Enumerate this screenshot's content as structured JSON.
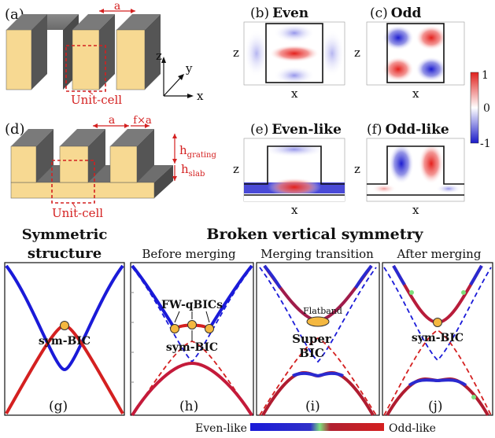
{
  "panels": {
    "a": "(a)",
    "b": "(b)",
    "c": "(c)",
    "d": "(d)",
    "e": "(e)",
    "f": "(f)",
    "g": "(g)",
    "h": "(h)",
    "i": "(i)",
    "j": "(j)"
  },
  "fields": {
    "b_title": "Even",
    "c_title": "Odd",
    "e_title": "Even-like",
    "f_title": "Odd-like",
    "axis_z": "z",
    "axis_x": "x"
  },
  "colorbar": {
    "max": "1",
    "mid": "0",
    "min": "-1",
    "colors": {
      "pos": "#e0201c",
      "zero": "#ffffff",
      "neg": "#1a1ac8"
    }
  },
  "structure_a": {
    "period": "a",
    "cell": "Unit-cell",
    "ax_z": "z",
    "ax_y": "y",
    "ax_x": "x"
  },
  "structure_d": {
    "period": "a",
    "gap": "f×a",
    "cell": "Unit-cell",
    "h_grating": "h",
    "h_grating_sub": "grating",
    "h_slab": "h",
    "h_slab_sub": "slab"
  },
  "headings": {
    "symmetric_1": "Symmetric",
    "symmetric_2": "structure",
    "broken": "Broken vertical symmetry",
    "before": "Before merging",
    "transition": "Merging transition",
    "after": "After merging"
  },
  "annotations": {
    "sym_bic": "sym-BIC",
    "fw_qbics": "FW-qBICs",
    "flatband": "Flatband",
    "super_1": "Super",
    "super_2": "BIC"
  },
  "legend": {
    "left": "Even-like",
    "right": "Odd-like",
    "colors": {
      "even": "#1a1ad8",
      "mid": "#7ee07e",
      "odd": "#d41f1f"
    }
  }
}
